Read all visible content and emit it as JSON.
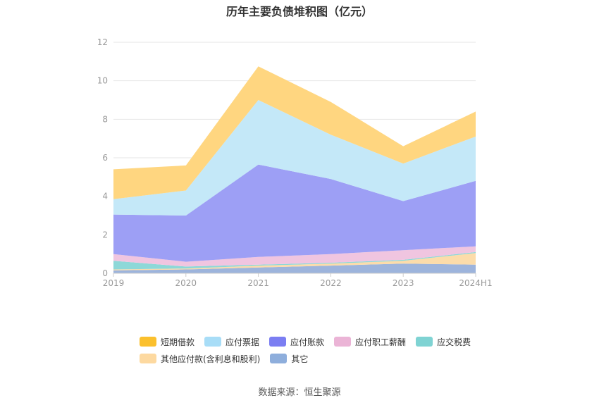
{
  "title": "历年主要负债堆积图（亿元）",
  "source": "数据来源：恒生聚源",
  "chart_data": {
    "type": "area",
    "stacked": true,
    "categories": [
      "2019",
      "2020",
      "2021",
      "2022",
      "2023",
      "2024H1"
    ],
    "ylim": [
      0,
      12
    ],
    "yticks": [
      "0",
      "2",
      "4",
      "6",
      "8",
      "10",
      "12"
    ],
    "grid": true,
    "legend_position": "bottom",
    "series": [
      {
        "name": "其它",
        "color": "#9db4dc",
        "values": [
          0.15,
          0.2,
          0.3,
          0.4,
          0.5,
          0.45
        ]
      },
      {
        "name": "其他应付款(含利息和股利)",
        "color": "#fcdcaa",
        "values": [
          0.05,
          0.05,
          0.1,
          0.1,
          0.15,
          0.6
        ]
      },
      {
        "name": "应交税费",
        "color": "#8dd8d8",
        "values": [
          0.45,
          0.1,
          0.05,
          0.05,
          0.05,
          0.05
        ]
      },
      {
        "name": "应付职工薪酬",
        "color": "#f0c5e0",
        "values": [
          0.35,
          0.25,
          0.4,
          0.45,
          0.5,
          0.3
        ]
      },
      {
        "name": "应付账款",
        "color": "#9d9ff5",
        "values": [
          2.05,
          2.4,
          4.8,
          3.9,
          2.55,
          3.4
        ]
      },
      {
        "name": "应付票据",
        "color": "#c4e8f8",
        "values": [
          0.8,
          1.3,
          3.35,
          2.3,
          1.95,
          2.3
        ]
      },
      {
        "name": "短期借款",
        "color": "#ffd680",
        "values": [
          1.55,
          1.3,
          1.75,
          1.7,
          0.9,
          1.3
        ]
      }
    ],
    "legend": [
      {
        "name": "短期借款",
        "color": "#fbc02d"
      },
      {
        "name": "应付票据",
        "color": "#a8ddf7"
      },
      {
        "name": "应付账款",
        "color": "#7b7ef2"
      },
      {
        "name": "应付职工薪酬",
        "color": "#ebb4d6"
      },
      {
        "name": "应交税费",
        "color": "#7fd3d3"
      },
      {
        "name": "其他应付款(含利息和股利)",
        "color": "#fdd9a0"
      },
      {
        "name": "其它",
        "color": "#8eaedc"
      }
    ]
  }
}
